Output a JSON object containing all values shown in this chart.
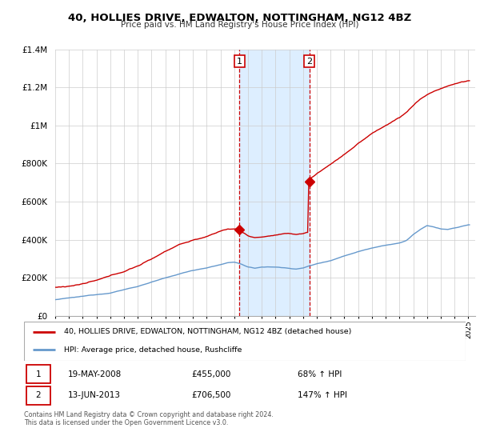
{
  "title": "40, HOLLIES DRIVE, EDWALTON, NOTTINGHAM, NG12 4BZ",
  "subtitle": "Price paid vs. HM Land Registry's House Price Index (HPI)",
  "legend_line1": "40, HOLLIES DRIVE, EDWALTON, NOTTINGHAM, NG12 4BZ (detached house)",
  "legend_line2": "HPI: Average price, detached house, Rushcliffe",
  "sale1_date": "19-MAY-2008",
  "sale1_price": "£455,000",
  "sale1_hpi": "68% ↑ HPI",
  "sale2_date": "13-JUN-2013",
  "sale2_price": "£706,500",
  "sale2_hpi": "147% ↑ HPI",
  "footnote": "Contains HM Land Registry data © Crown copyright and database right 2024.\nThis data is licensed under the Open Government Licence v3.0.",
  "red_color": "#cc0000",
  "blue_color": "#6699cc",
  "highlight_color": "#ddeeff",
  "sale1_year": 2008.38,
  "sale2_year": 2013.45,
  "sale1_value": 455000,
  "sale2_value": 706500,
  "ylim_max": 1400000,
  "ylim_min": 0,
  "xlim_min": 1995,
  "xlim_max": 2025.5
}
